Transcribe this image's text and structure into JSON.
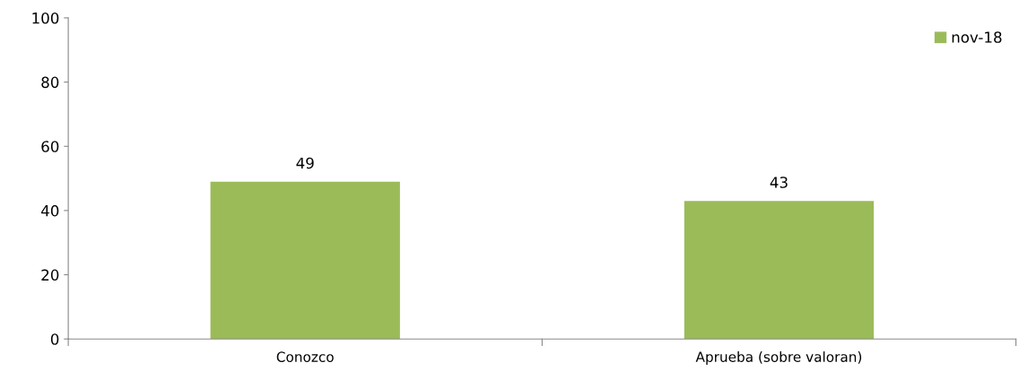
{
  "chart_data": {
    "type": "bar",
    "categories": [
      "Conozco",
      "Aprueba (sobre valoran)"
    ],
    "series": [
      {
        "name": "nov-18",
        "color": "#9bbb59",
        "values": [
          49,
          43
        ]
      }
    ],
    "ylim": [
      0,
      100
    ],
    "yticks": [
      0,
      20,
      40,
      60,
      80,
      100
    ],
    "data_labels": true,
    "legend": "top right",
    "grid": false
  }
}
